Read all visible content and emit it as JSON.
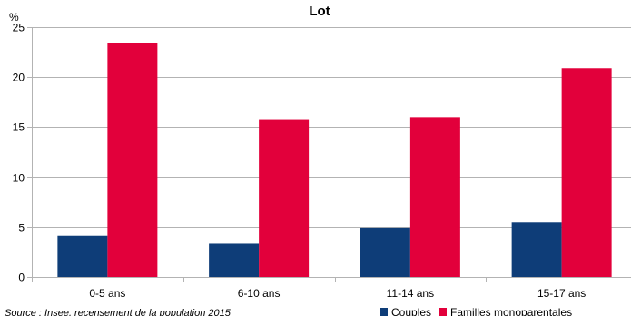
{
  "chart_data": {
    "type": "bar",
    "title": "Lot",
    "ylabel": "%",
    "xlabel": "",
    "categories": [
      "0-5 ans",
      "6-10 ans",
      "11-14 ans",
      "15-17 ans"
    ],
    "series": [
      {
        "name": "Couples",
        "values": [
          4.1,
          3.4,
          4.9,
          5.5
        ],
        "color": "#0e3d78"
      },
      {
        "name": "Familles monoparentales",
        "values": [
          23.4,
          15.8,
          16.0,
          20.9
        ],
        "color": "#e2003b"
      }
    ],
    "ylim": [
      0,
      25
    ],
    "yticks": [
      0,
      5,
      10,
      15,
      20,
      25
    ],
    "grid": true,
    "legend_position": "bottom-right",
    "source": "Source : Insee, recensement de la population 2015"
  }
}
